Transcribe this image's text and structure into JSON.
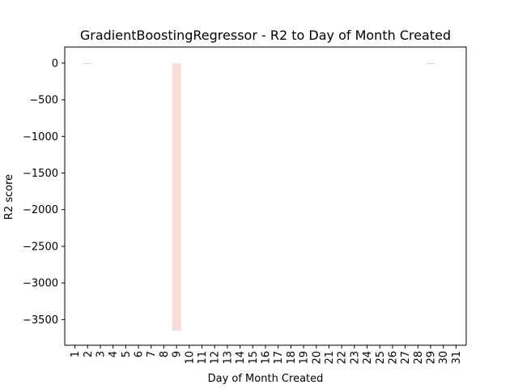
{
  "chart_data": {
    "type": "bar",
    "title": "GradientBoostingRegressor - R2 to Day of Month Created",
    "xlabel": "Day of Month Created",
    "ylabel": "R2 score",
    "categories": [
      "1",
      "2",
      "3",
      "4",
      "5",
      "6",
      "7",
      "8",
      "9",
      "10",
      "11",
      "12",
      "13",
      "14",
      "15",
      "16",
      "17",
      "18",
      "19",
      "20",
      "21",
      "22",
      "23",
      "24",
      "25",
      "26",
      "27",
      "28",
      "29",
      "30",
      "31"
    ],
    "values": [
      0,
      -1.5,
      0,
      0,
      0,
      0,
      0,
      0,
      -3652,
      0,
      0,
      0,
      0,
      0,
      0,
      0,
      0,
      0,
      0,
      0,
      0,
      0,
      0,
      0,
      0,
      0,
      0,
      0,
      -1.5,
      0,
      0
    ],
    "yticks": [
      0,
      -500,
      -1000,
      -1500,
      -2000,
      -2500,
      -3000,
      -3500
    ],
    "ytick_labels": [
      "0",
      "−500",
      "−1000",
      "−1500",
      "−2000",
      "−2500",
      "−3000",
      "−3500"
    ],
    "ylim": [
      -3850,
      220
    ],
    "grid": false,
    "bar_color": "#f9ddd8",
    "small_bar_color": "#b8c8e0"
  }
}
